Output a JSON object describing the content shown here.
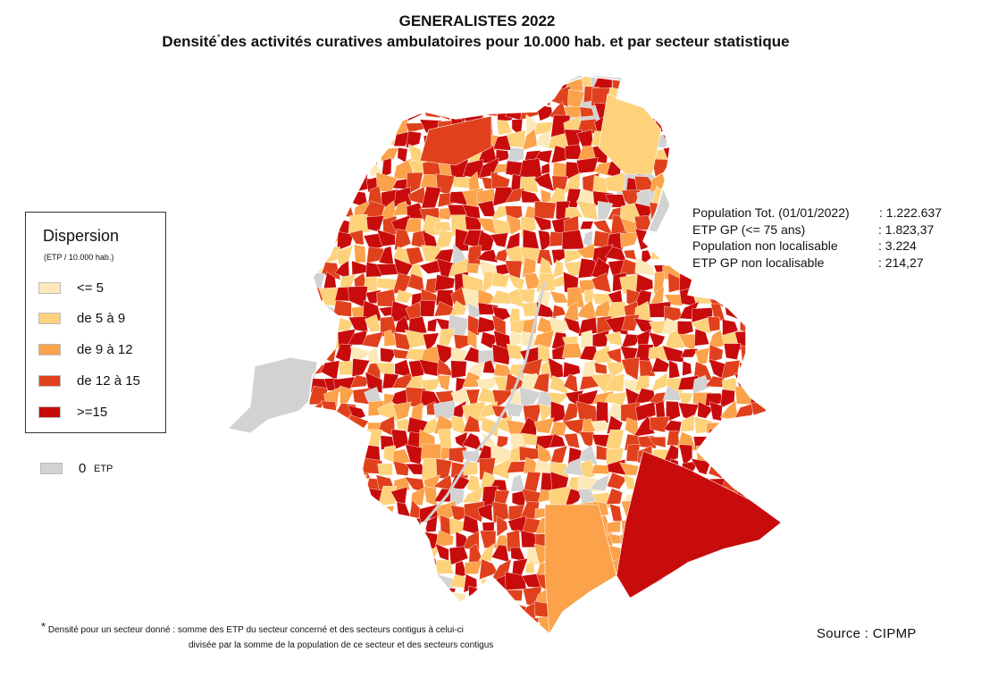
{
  "header": {
    "title": "GENERALISTES 2022",
    "subtitle_pre": "Densité",
    "subtitle_star": "*",
    "subtitle_post": "des activités curatives ambulatoires pour 10.000 hab. et par secteur statistique"
  },
  "legend": {
    "title": "Dispersion",
    "unit": "(ETP / 10.000 hab.)",
    "classes": [
      {
        "label": "<= 5",
        "color": "#FDE9B8"
      },
      {
        "label": "de 5 à 9",
        "color": "#FDD27A"
      },
      {
        "label": "de 9 à 12",
        "color": "#FBA24A"
      },
      {
        "label": "de 12 à 15",
        "color": "#E0411C"
      },
      {
        "label": ">=15",
        "color": "#C80C0C"
      }
    ],
    "no_data": {
      "value": "0",
      "unit": "ETP",
      "color": "#D2D2D2"
    }
  },
  "stats": [
    {
      "label": "Population Tot. (01/01/2022)",
      "value": ": 1.222.637"
    },
    {
      "label": "ETP GP (<= 75 ans)",
      "value": ": 1.823,37"
    },
    {
      "label": "Population non localisable",
      "value": ": 3.224"
    },
    {
      "label": "ETP GP non localisable",
      "value": ": 214,27"
    }
  ],
  "footnote": {
    "star": "*",
    "line1": "Densité pour un secteur donné  : somme des ETP du secteur concerné et des secteurs contigus à celui-ci",
    "line2": "divisée  par la somme de la population de ce secteur et des secteurs contigus"
  },
  "source": "Source : CIPMP"
}
